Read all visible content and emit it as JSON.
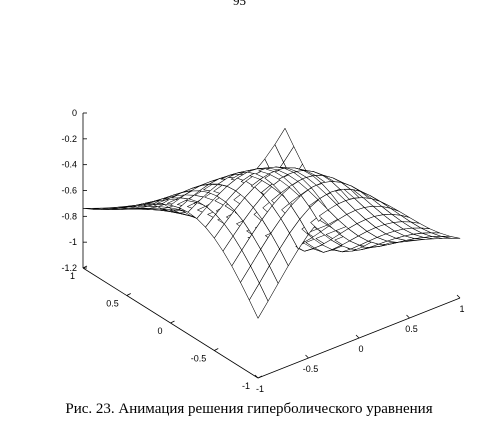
{
  "page_number": "95",
  "figure": {
    "chart_data": {
      "type": "surface-mesh",
      "x_range": [
        -1,
        1
      ],
      "y_range": [
        -1,
        1
      ],
      "z_range": [
        -1.2,
        0
      ],
      "grid": "21x21",
      "z_ticks": [
        "0",
        "-0.2",
        "-0.4",
        "-0.6",
        "-0.8",
        "-1",
        "-1.2"
      ],
      "left_axis_ticks": [
        "1",
        "0.5",
        "0",
        "-0.5",
        "-1"
      ],
      "right_axis_ticks": [
        "-1",
        "-0.5",
        "0",
        "0.5",
        "1"
      ]
    }
  },
  "caption": "Рис. 23. Анимация решения гиперболического уравнения"
}
